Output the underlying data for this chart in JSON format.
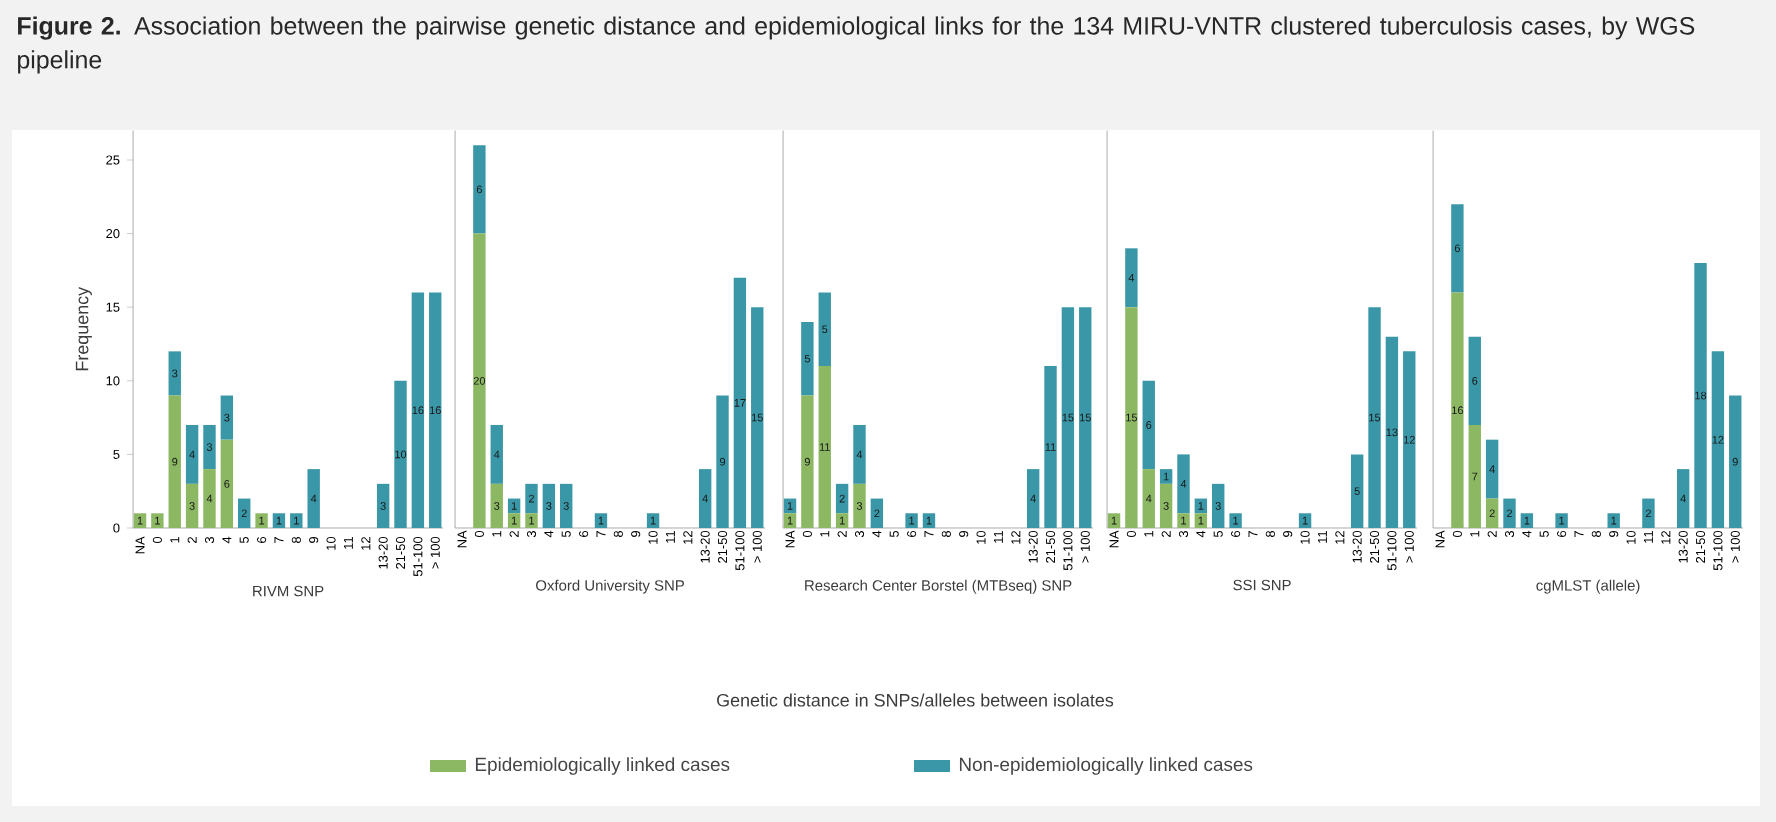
{
  "chart_data": [
    {
      "type": "bar",
      "stacked": true,
      "title": "**Figure 2.** Association between the pairwise genetic distance and epidemiological links for the 134 MIRU-VNTR clustered tuberculosis cases, by WGS pipeline",
      "ylabel": "Frequency",
      "xlabel": "RIVM SNP",
      "legend": "bottom",
      "ylim": [
        0,
        27
      ],
      "yticks": [
        0,
        5,
        10,
        15,
        20,
        25
      ],
      "categories": [
        "NA",
        "0",
        "1",
        "2",
        "3",
        "4",
        "5",
        "6",
        "7",
        "8",
        "9",
        "10",
        "11",
        "12",
        "13-20",
        "21-50",
        "51-100",
        "> 100"
      ],
      "series": [
        {
          "name": "Epidemiologically linked cases",
          "color": "#8db863",
          "values": [
            1,
            1,
            9,
            3,
            4,
            6,
            0,
            1,
            0,
            0,
            0,
            0,
            0,
            0,
            0,
            0,
            0,
            0
          ],
          "value_labels": [
            "1",
            "1",
            "9",
            "3",
            "4",
            "6",
            null,
            "1",
            null,
            null,
            null,
            null,
            null,
            null,
            null,
            null,
            null,
            null
          ]
        },
        {
          "name": "Non-epidemiologically linked cases",
          "color": "#3a97a7",
          "values": [
            0,
            0,
            3,
            4,
            3,
            3,
            2,
            0,
            1,
            1,
            4,
            0,
            0,
            0,
            3,
            10,
            16,
            16
          ],
          "value_labels": [
            null,
            null,
            "3",
            "4",
            "3",
            "3",
            "2",
            null,
            "1",
            "1",
            "4",
            null,
            null,
            null,
            "3",
            "10",
            "16",
            "16"
          ]
        }
      ]
    },
    {
      "type": "bar",
      "stacked": true,
      "xlabel": "Oxford University SNP",
      "tick_labels": "x",
      "ylim": [
        0,
        27
      ],
      "yticks": [
        0,
        5,
        10,
        15,
        20,
        25
      ],
      "categories": [
        "NA",
        "0",
        "1",
        "2",
        "3",
        "4",
        "5",
        "6",
        "7",
        "8",
        "9",
        "10",
        "11",
        "12",
        "13-20",
        "21-50",
        "51-100",
        "> 100"
      ],
      "series": [
        {
          "color": "#8db863",
          "values": [
            0,
            20,
            3,
            1,
            1,
            0,
            0,
            0,
            0,
            0,
            0,
            0,
            0,
            0,
            0,
            0,
            0,
            0
          ],
          "value_labels": [
            null,
            "20",
            "3",
            "1",
            "1",
            null,
            null,
            null,
            null,
            null,
            null,
            null,
            null,
            null,
            null,
            null,
            null,
            null
          ]
        },
        {
          "color": "#3a97a7",
          "values": [
            0,
            6,
            4,
            1,
            2,
            3,
            3,
            0,
            1,
            0,
            0,
            1,
            0,
            0,
            4,
            9,
            17,
            15
          ],
          "value_labels": [
            null,
            "6",
            "4",
            "1",
            "2",
            "3",
            "3",
            null,
            "1",
            null,
            null,
            "1",
            null,
            null,
            "4",
            "9",
            "17",
            "15"
          ]
        }
      ]
    },
    {
      "type": "bar",
      "stacked": true,
      "xlabel": "Research Center Borstel (MTBseq) SNP",
      "tick_labels": "x",
      "ylim": [
        0,
        27
      ],
      "yticks": [
        0,
        5,
        10,
        15,
        20,
        25
      ],
      "annotations": [
        "Genetic distance in SNPs/alleles between isolates"
      ],
      "categories": [
        "NA",
        "0",
        "1",
        "2",
        "3",
        "4",
        "5",
        "6",
        "7",
        "8",
        "9",
        "10",
        "11",
        "12",
        "13-20",
        "21-50",
        "51-100",
        "> 100"
      ],
      "series": [
        {
          "color": "#8db863",
          "values": [
            1,
            9,
            11,
            1,
            3,
            0,
            0,
            0,
            0,
            0,
            0,
            0,
            0,
            0,
            0,
            0,
            0,
            0
          ],
          "value_labels": [
            "1",
            "9",
            "11",
            "1",
            "3",
            null,
            null,
            null,
            null,
            null,
            null,
            null,
            null,
            null,
            null,
            null,
            null,
            null
          ]
        },
        {
          "color": "#3a97a7",
          "values": [
            1,
            5,
            5,
            2,
            4,
            2,
            0,
            1,
            1,
            0,
            0,
            0,
            0,
            0,
            4,
            11,
            15,
            15
          ],
          "value_labels": [
            "1",
            "5",
            "5",
            "2",
            "4",
            "2",
            null,
            "1",
            "1",
            null,
            null,
            null,
            null,
            null,
            "4",
            "11",
            "15",
            "15"
          ]
        }
      ]
    },
    {
      "type": "bar",
      "stacked": true,
      "xlabel": "SSI SNP",
      "tick_labels": "x",
      "ylim": [
        0,
        27
      ],
      "yticks": [
        0,
        5,
        10,
        15,
        20,
        25
      ],
      "categories": [
        "NA",
        "0",
        "1",
        "2",
        "3",
        "4",
        "5",
        "6",
        "7",
        "8",
        "9",
        "10",
        "11",
        "12",
        "13-20",
        "21-50",
        "51-100",
        "> 100"
      ],
      "series": [
        {
          "color": "#8db863",
          "values": [
            1,
            15,
            4,
            3,
            1,
            1,
            0,
            0,
            0,
            0,
            0,
            0,
            0,
            0,
            0,
            0,
            0,
            0
          ],
          "value_labels": [
            "1",
            "15",
            "4",
            "3",
            "1",
            "1",
            null,
            null,
            null,
            null,
            null,
            null,
            null,
            null,
            null,
            null,
            null,
            null
          ]
        },
        {
          "color": "#3a97a7",
          "values": [
            0,
            4,
            6,
            1,
            4,
            1,
            3,
            1,
            0,
            0,
            0,
            1,
            0,
            0,
            5,
            15,
            13,
            12
          ],
          "value_labels": [
            null,
            "4",
            "6",
            "1",
            "4",
            "1",
            "3",
            "1",
            null,
            null,
            null,
            "1",
            null,
            null,
            "5",
            "15",
            "13",
            "12"
          ]
        }
      ]
    },
    {
      "type": "bar",
      "stacked": true,
      "xlabel": "cgMLST (allele)",
      "tick_labels": "x",
      "ylim": [
        0,
        27
      ],
      "yticks": [
        0,
        5,
        10,
        15,
        20,
        25
      ],
      "categories": [
        "NA",
        "0",
        "1",
        "2",
        "3",
        "4",
        "5",
        "6",
        "7",
        "8",
        "9",
        "10",
        "11",
        "12",
        "13-20",
        "21-50",
        "51-100",
        "> 100"
      ],
      "series": [
        {
          "color": "#8db863",
          "values": [
            0,
            16,
            7,
            2,
            0,
            0,
            0,
            0,
            0,
            0,
            0,
            0,
            0,
            0,
            0,
            0,
            0,
            0
          ],
          "value_labels": [
            null,
            "16",
            "7",
            "2",
            null,
            null,
            null,
            null,
            null,
            null,
            null,
            null,
            null,
            null,
            null,
            null,
            null,
            null
          ]
        },
        {
          "color": "#3a97a7",
          "values": [
            0,
            6,
            6,
            4,
            2,
            1,
            0,
            1,
            0,
            0,
            1,
            0,
            2,
            0,
            4,
            18,
            12,
            9
          ],
          "value_labels": [
            null,
            "6",
            "6",
            "4",
            "2",
            "1",
            null,
            "1",
            null,
            null,
            "1",
            null,
            "2",
            null,
            "4",
            "18",
            "12",
            "9"
          ]
        }
      ]
    }
  ]
}
